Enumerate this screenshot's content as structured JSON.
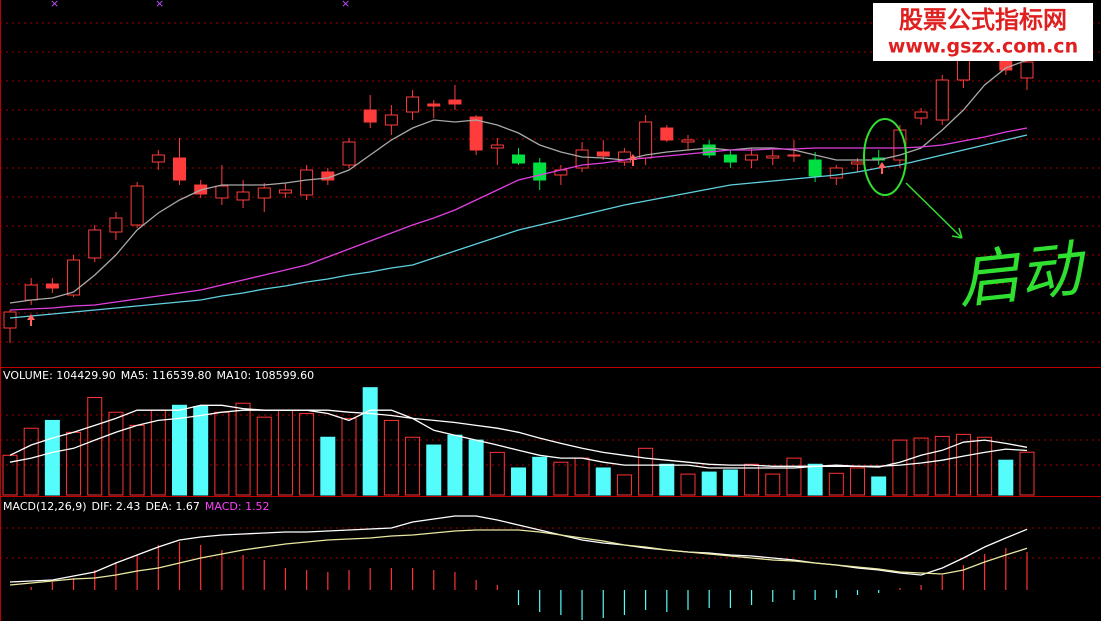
{
  "chart_data": [
    {
      "type": "candlestick",
      "grid": true,
      "ylim": [
        0,
        365
      ],
      "open": [
        37,
        65,
        81,
        70,
        107,
        133,
        140,
        203,
        207,
        180,
        167,
        165,
        167,
        172,
        170,
        193,
        200,
        255,
        240,
        253,
        261,
        265,
        248,
        217,
        210,
        202,
        190,
        197,
        213,
        203,
        207,
        237,
        223,
        220,
        210,
        205,
        207,
        209,
        205,
        187,
        201,
        207,
        205,
        247,
        245,
        285,
        320,
        305,
        287
      ],
      "close": [
        53,
        80,
        77,
        105,
        135,
        147,
        179,
        210,
        185,
        171,
        179,
        173,
        177,
        175,
        195,
        185,
        223,
        243,
        250,
        268,
        259,
        261,
        215,
        220,
        202,
        185,
        195,
        215,
        209,
        213,
        243,
        225,
        225,
        210,
        203,
        210,
        209,
        210,
        189,
        197,
        203,
        205,
        235,
        253,
        285,
        310,
        335,
        295,
        303
      ],
      "high": [
        55,
        87,
        87,
        110,
        140,
        153,
        183,
        215,
        227,
        185,
        200,
        185,
        182,
        182,
        200,
        197,
        227,
        270,
        260,
        275,
        265,
        280,
        250,
        227,
        217,
        207,
        200,
        223,
        225,
        217,
        250,
        240,
        230,
        225,
        215,
        217,
        215,
        225,
        213,
        200,
        207,
        215,
        240,
        257,
        290,
        315,
        340,
        310,
        307
      ],
      "low": [
        22,
        60,
        72,
        68,
        103,
        125,
        137,
        195,
        180,
        167,
        160,
        157,
        153,
        167,
        165,
        180,
        197,
        237,
        230,
        245,
        247,
        255,
        210,
        200,
        200,
        175,
        180,
        193,
        205,
        199,
        200,
        223,
        215,
        207,
        197,
        197,
        200,
        203,
        183,
        180,
        193,
        200,
        197,
        240,
        240,
        277,
        315,
        290,
        275
      ],
      "colors": [
        "#ff3c3c",
        "#ff3c3c",
        "#ff3c3c",
        "#ff3c3c",
        "#ff3c3c",
        "#ff3c3c",
        "#ff3c3c",
        "#ff3c3c",
        "#ff3c3c",
        "#ff3c3c",
        "#ff3c3c",
        "#ff3c3c",
        "#ff3c3c",
        "#ff3c3c",
        "#ff3c3c",
        "#ff3c3c",
        "#ff3c3c",
        "#ff3c3c",
        "#ff3c3c",
        "#ff3c3c",
        "#ff3c3c",
        "#ff3c3c",
        "#ff3c3c",
        "#ff3c3c",
        "#00e040",
        "#00e040",
        "#ff3c3c",
        "#ff3c3c",
        "#ff3c3c",
        "#ff3c3c",
        "#ff3c3c",
        "#ff3c3c",
        "#ff3c3c",
        "#00e040",
        "#00e040",
        "#ff3c3c",
        "#ff3c3c",
        "#ff3c3c",
        "#00e040",
        "#ff3c3c",
        "#ff3c3c",
        "#00e040",
        "#ff3c3c",
        "#ff3c3c",
        "#ff3c3c",
        "#ff3c3c",
        "#ff3c3c",
        "#ff3c3c",
        "#ff3c3c"
      ],
      "series": [
        {
          "color": "#a8a8a8",
          "values": [
            62,
            65,
            67,
            73,
            90,
            110,
            135,
            152,
            165,
            175,
            180,
            180,
            180,
            182,
            185,
            187,
            195,
            210,
            225,
            237,
            245,
            243,
            245,
            240,
            232,
            220,
            213,
            208,
            207,
            205,
            210,
            213,
            215,
            217,
            215,
            217,
            217,
            215,
            210,
            205,
            205,
            205,
            210,
            217,
            235,
            255,
            280,
            297,
            305
          ]
        },
        {
          "color": "#e040e0",
          "values": [
            55,
            56,
            57,
            59,
            60,
            63,
            66,
            69,
            72,
            75,
            80,
            85,
            90,
            95,
            100,
            108,
            116,
            124,
            132,
            140,
            147,
            155,
            165,
            175,
            185,
            190,
            195,
            200,
            202,
            205,
            207,
            209,
            211,
            213,
            215,
            215,
            216,
            216,
            217,
            217,
            217,
            217,
            217,
            218,
            220,
            224,
            228,
            233,
            237
          ]
        },
        {
          "color": "#60d0e0",
          "values": [
            47,
            49,
            51,
            53,
            55,
            57,
            59,
            61,
            63,
            65,
            69,
            72,
            76,
            79,
            83,
            86,
            90,
            93,
            97,
            100,
            107,
            114,
            121,
            128,
            135,
            140,
            145,
            150,
            155,
            160,
            164,
            168,
            172,
            176,
            180,
            182,
            184,
            186,
            188,
            190,
            193,
            197,
            200,
            205,
            210,
            215,
            220,
            225,
            230
          ]
        }
      ],
      "annotations": [
        "股票公式指标网",
        "www.gszx.com.cn",
        "启动"
      ]
    },
    {
      "type": "volume",
      "grid": true,
      "ylim": [
        0,
        310000
      ],
      "up_color": "#ff3232",
      "down_color": "#54fcfc",
      "values": [
        97000,
        163000,
        182000,
        153000,
        238000,
        202000,
        170000,
        207000,
        219000,
        216000,
        202000,
        224000,
        190000,
        207000,
        199000,
        141000,
        187000,
        262000,
        182000,
        141000,
        122000,
        146000,
        134000,
        104000,
        66000,
        92000,
        80000,
        90000,
        66000,
        49000,
        114000,
        75000,
        51000,
        56000,
        61000,
        75000,
        51000,
        90000,
        75000,
        53000,
        66000,
        44000,
        134000,
        139000,
        143000,
        148000,
        141000,
        85000,
        104429.9
      ],
      "series": [
        {
          "color": "#ffffff",
          "values": [
            97000,
            122000,
            139000,
            153000,
            170000,
            187000,
            207000,
            207000,
            207000,
            219000,
            219000,
            211000,
            207000,
            207000,
            207000,
            199000,
            182000,
            207000,
            207000,
            187000,
            158000,
            146000,
            134000,
            122000,
            109000,
            97000,
            90000,
            90000,
            80000,
            73000,
            73000,
            73000,
            73000,
            66000,
            66000,
            66000,
            66000,
            66000,
            70000,
            73000,
            70000,
            68000,
            80000,
            97000,
            109000,
            129000,
            134000,
            126000,
            116539.8
          ]
        },
        {
          "color": "#ffffff",
          "values": [
            80000,
            90000,
            104000,
            114000,
            134000,
            153000,
            170000,
            182000,
            187000,
            194000,
            202000,
            207000,
            207000,
            207000,
            207000,
            207000,
            202000,
            199000,
            194000,
            187000,
            182000,
            177000,
            170000,
            163000,
            153000,
            139000,
            126000,
            114000,
            104000,
            97000,
            90000,
            85000,
            80000,
            75000,
            73000,
            73000,
            70000,
            70000,
            70000,
            70000,
            70000,
            70000,
            73000,
            78000,
            85000,
            95000,
            104000,
            112000,
            108599.6
          ]
        }
      ],
      "readouts": [
        {
          "text": "VOLUME: 104429.90",
          "color": "#ffffff"
        },
        {
          "text": "MA5: 116539.80",
          "color": "#ffffff"
        },
        {
          "text": "MA10: 108599.60",
          "color": "#ffffff"
        }
      ]
    },
    {
      "type": "macd",
      "grid": true,
      "ylim": [
        -1.24,
        3.72
      ],
      "up_color": "#ff3232",
      "down_color": "#54fcfc",
      "values": [
        0,
        0.12,
        0.32,
        0.48,
        0.8,
        1.12,
        1.4,
        1.8,
        1.92,
        1.8,
        1.6,
        1.4,
        1.2,
        0.88,
        0.8,
        0.72,
        0.8,
        0.88,
        0.88,
        0.88,
        0.8,
        0.72,
        0.4,
        0.2,
        -0.6,
        -0.88,
        -1,
        -1.2,
        -1.12,
        -1,
        -0.8,
        -0.88,
        -0.8,
        -0.72,
        -0.72,
        -0.6,
        -0.48,
        -0.4,
        -0.4,
        -0.32,
        -0.2,
        -0.12,
        0.08,
        0.2,
        0.6,
        1,
        1.44,
        1.68,
        1.52
      ],
      "series": [
        {
          "color": "#ffffff",
          "values": [
            0.32,
            0.36,
            0.4,
            0.56,
            0.72,
            1.08,
            1.4,
            1.72,
            2.0,
            2.12,
            2.2,
            2.24,
            2.28,
            2.32,
            2.32,
            2.36,
            2.4,
            2.44,
            2.48,
            2.72,
            2.84,
            2.96,
            2.96,
            2.8,
            2.6,
            2.4,
            2.2,
            2.0,
            1.88,
            1.8,
            1.68,
            1.6,
            1.52,
            1.48,
            1.4,
            1.36,
            1.28,
            1.2,
            1.08,
            1.0,
            0.88,
            0.8,
            0.68,
            0.6,
            0.88,
            1.28,
            1.72,
            2.08,
            2.43
          ]
        },
        {
          "color": "#e8e8a0",
          "values": [
            0.2,
            0.28,
            0.36,
            0.44,
            0.48,
            0.6,
            0.76,
            0.88,
            1.08,
            1.28,
            1.44,
            1.6,
            1.72,
            1.84,
            1.92,
            2.0,
            2.04,
            2.08,
            2.16,
            2.2,
            2.28,
            2.36,
            2.4,
            2.4,
            2.4,
            2.32,
            2.2,
            2.08,
            1.96,
            1.8,
            1.72,
            1.6,
            1.52,
            1.44,
            1.36,
            1.28,
            1.2,
            1.16,
            1.08,
            1.0,
            0.92,
            0.84,
            0.72,
            0.68,
            0.64,
            0.8,
            1.12,
            1.4,
            1.67
          ]
        }
      ],
      "readouts": [
        {
          "text": "MACD(12,26,9)",
          "color": "#ffffff"
        },
        {
          "text": "DIF: 2.43",
          "color": "#ffffff"
        },
        {
          "text": "DEA: 1.67",
          "color": "#ffffff"
        },
        {
          "text": "MACD: 1.52",
          "color": "#ff40ff"
        }
      ]
    }
  ]
}
